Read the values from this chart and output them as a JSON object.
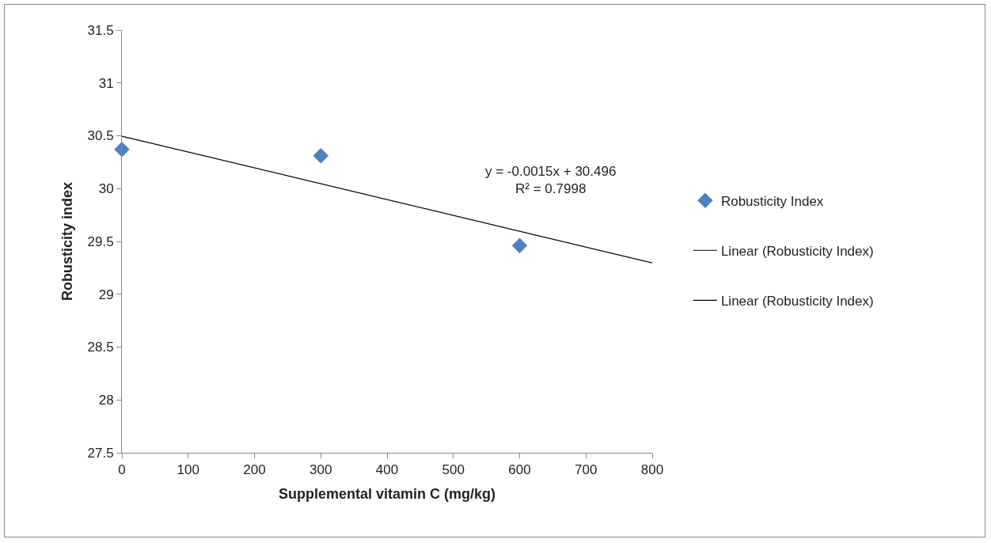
{
  "chart_data": {
    "type": "scatter",
    "xlabel": "Supplemental vitamin C (mg/kg)",
    "ylabel": "Robusticity index",
    "x": [
      0,
      300,
      600
    ],
    "series": [
      {
        "name": "Robusticity Index",
        "color": "#4f81bd",
        "values": [
          30.37,
          30.31,
          29.46
        ],
        "marker": "diamond"
      },
      {
        "name": "Linear (Robusticity Index)",
        "type": "line",
        "color": "#000000",
        "x": [
          0,
          800
        ],
        "values": [
          30.496,
          29.296
        ],
        "marker": "none",
        "line_style": "solid"
      },
      {
        "name": "Linear (Robusticity Index)",
        "type": "line",
        "color": "#000000",
        "values": [
          null,
          null,
          null
        ],
        "marker": "none",
        "line_style": "solid"
      }
    ],
    "xlim": [
      0,
      800
    ],
    "xticks": [
      0,
      100,
      200,
      300,
      400,
      500,
      600,
      700,
      800
    ],
    "ylim": [
      27.5,
      31.5
    ],
    "yticks": [
      27.5,
      28,
      28.5,
      29,
      29.5,
      30,
      30.5,
      31,
      31.5
    ],
    "annotations": [
      "y = -0.0015x + 30.496\nR² = 0.7998"
    ],
    "grid": false,
    "legend": "right"
  }
}
